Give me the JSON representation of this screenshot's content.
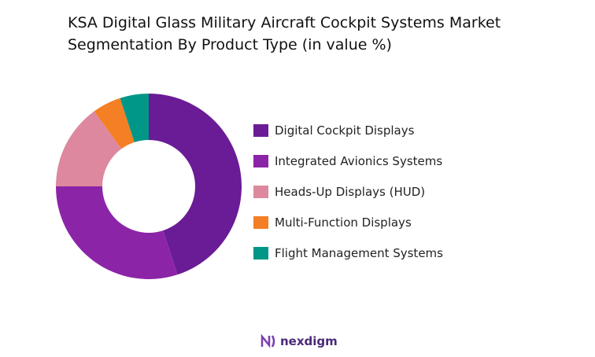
{
  "chart_data": {
    "type": "pie",
    "donut": true,
    "title": "KSA Digital Glass Military Aircraft Cockpit Systems Market Segmentation By Product Type (in value %)",
    "categories": [
      "Digital Cockpit Displays",
      "Integrated Avionics Systems",
      "Heads-Up Displays (HUD)",
      "Multi-Function Displays",
      "Flight Management Systems"
    ],
    "values": [
      45,
      30,
      15,
      5,
      5
    ],
    "colors": [
      "#6a1b96",
      "#8c24a8",
      "#dd889e",
      "#f47f24",
      "#009688"
    ],
    "legend": "right"
  },
  "brand": "nexdigm"
}
